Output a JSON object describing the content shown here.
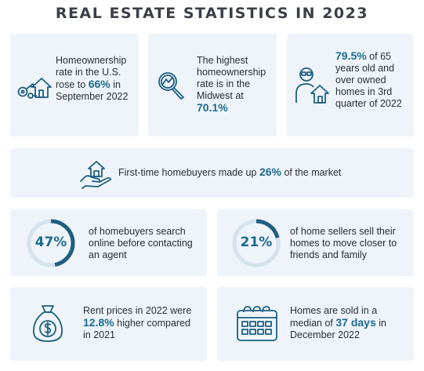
{
  "title": "REAL ESTATE STATISTICS IN 2023",
  "accent": "#1d6a8e",
  "icon_color": "#1f5f80",
  "card_bg": "#eef4f9",
  "cards": {
    "homeownership": {
      "icon": "house-keys-icon",
      "pre": "Homeownership rate in the U.S. rose to ",
      "value": "66%",
      "post": " in September 2022"
    },
    "midwest": {
      "icon": "magnifier-chart-icon",
      "pre": "The highest homeownership rate is in the Midwest at",
      "value": "70.1%"
    },
    "seniors": {
      "icon": "person-house-icon",
      "value": "79.5%",
      "post": " of 65 years old and over owned homes in 3rd quarter of 2022"
    },
    "first_time": {
      "icon": "hand-house-icon",
      "pre": "First-time homebuyers made up ",
      "value": "26%",
      "post": " of the market"
    },
    "search_online": {
      "percent_label": "47%",
      "fraction": 0.47,
      "text": "of homebuyers search online before contacting an agent"
    },
    "sellers_move": {
      "percent_label": "21%",
      "fraction": 0.21,
      "text": "of home sellers sell their homes to move closer to friends and family"
    },
    "rent": {
      "icon": "money-bag-icon",
      "pre": "Rent prices in 2022 were ",
      "value": "12.8%",
      "post": " higher compared in 2021"
    },
    "days_on_market": {
      "icon": "calendar-icon",
      "pre": "Homes are sold in a median of ",
      "value": "37 days",
      "post": " in December 2022"
    }
  }
}
